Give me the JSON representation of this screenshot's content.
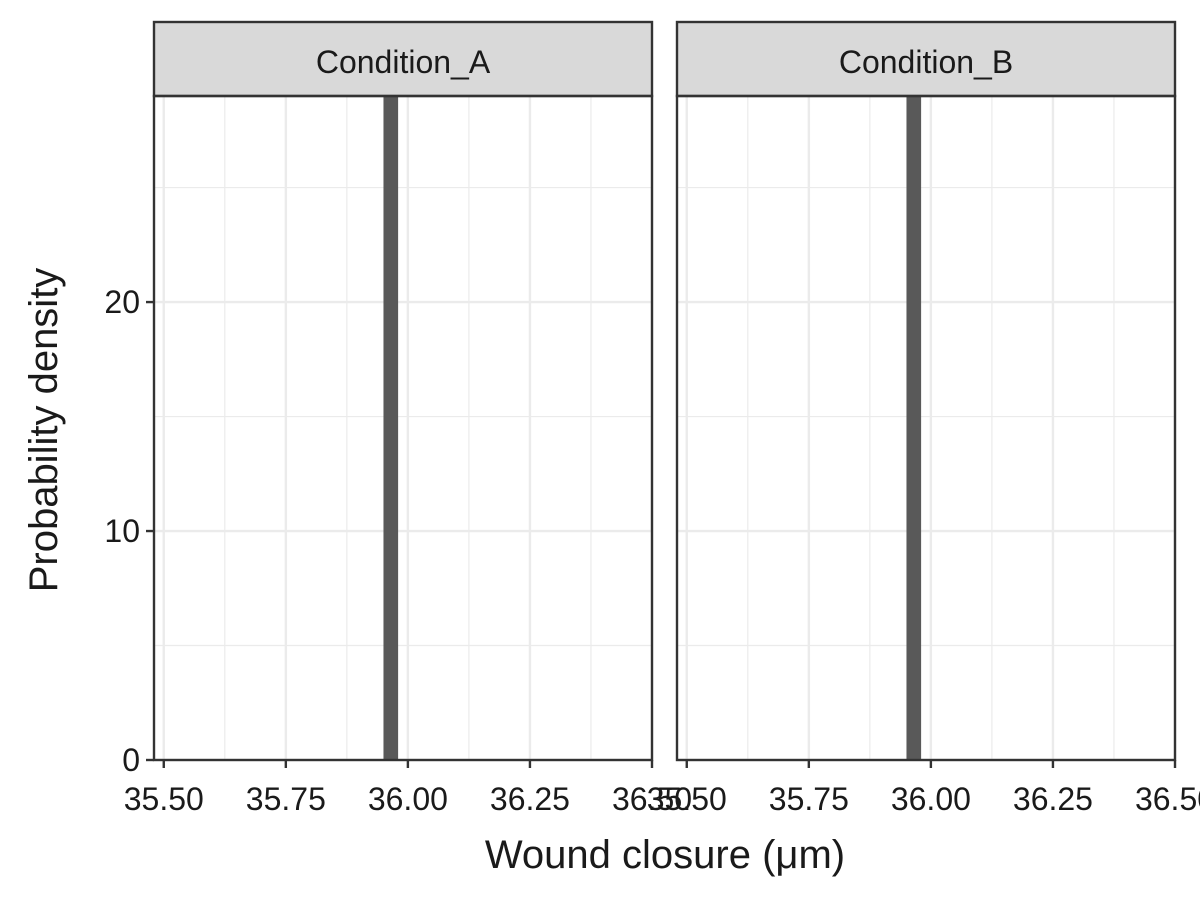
{
  "chart_data": {
    "type": "bar",
    "subtype": "histogram-facets",
    "xlabel": "Wound closure (μm)",
    "ylabel": "Probability density",
    "xlim": [
      35.48,
      36.5
    ],
    "ylim": [
      0,
      29
    ],
    "x_ticks": [
      35.5,
      35.75,
      36.0,
      36.25,
      36.5
    ],
    "x_tick_labels": [
      "35.50",
      "35.75",
      "36.00",
      "36.25",
      "36.50"
    ],
    "y_ticks": [
      0,
      10,
      20
    ],
    "y_tick_labels": [
      "0",
      "10",
      "20"
    ],
    "grid": true,
    "bar_color": "#595959",
    "panels": [
      {
        "label": "Condition_A",
        "bars": [
          {
            "x0": 35.95,
            "x1": 35.98,
            "density": 29
          }
        ]
      },
      {
        "label": "Condition_B",
        "bars": [
          {
            "x0": 35.95,
            "x1": 35.98,
            "density": 29
          }
        ]
      }
    ]
  }
}
